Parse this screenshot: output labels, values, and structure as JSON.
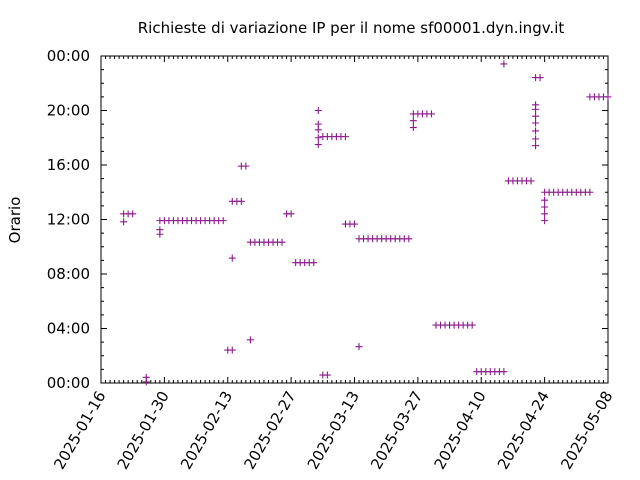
{
  "chart_data": {
    "type": "scatter",
    "title": "Richieste di variazione IP per il nome sf00001.dyn.ingv.it",
    "xlabel": "",
    "ylabel": "Orario",
    "marker": "plus",
    "color": "#8b1a8b",
    "grid": false,
    "x_ticks": [
      "2025-01-16",
      "2025-01-30",
      "2025-02-13",
      "2025-02-27",
      "2025-03-13",
      "2025-03-27",
      "2025-04-10",
      "2025-04-24",
      "2025-05-08"
    ],
    "y_ticks": [
      "00:00",
      "04:00",
      "08:00",
      "12:00",
      "16:00",
      "20:00",
      "00:00"
    ],
    "xlim": [
      "2025-01-16",
      "2025-05-08"
    ],
    "ylim": [
      "00:00",
      "24:00"
    ],
    "points": [
      {
        "x": "2025-01-21",
        "y": "11:50"
      },
      {
        "x": "2025-01-21",
        "y": "12:25"
      },
      {
        "x": "2025-01-22",
        "y": "12:25"
      },
      {
        "x": "2025-01-23",
        "y": "12:25"
      },
      {
        "x": "2025-01-26",
        "y": "00:05"
      },
      {
        "x": "2025-01-26",
        "y": "00:25"
      },
      {
        "x": "2025-01-29",
        "y": "10:55"
      },
      {
        "x": "2025-01-29",
        "y": "11:15"
      },
      {
        "x": "2025-01-29",
        "y": "11:55"
      },
      {
        "x": "2025-01-30",
        "y": "11:55"
      },
      {
        "x": "2025-01-31",
        "y": "11:55"
      },
      {
        "x": "2025-02-01",
        "y": "11:55"
      },
      {
        "x": "2025-02-02",
        "y": "11:55"
      },
      {
        "x": "2025-02-03",
        "y": "11:55"
      },
      {
        "x": "2025-02-04",
        "y": "11:55"
      },
      {
        "x": "2025-02-05",
        "y": "11:55"
      },
      {
        "x": "2025-02-06",
        "y": "11:55"
      },
      {
        "x": "2025-02-07",
        "y": "11:55"
      },
      {
        "x": "2025-02-08",
        "y": "11:55"
      },
      {
        "x": "2025-02-09",
        "y": "11:55"
      },
      {
        "x": "2025-02-10",
        "y": "11:55"
      },
      {
        "x": "2025-02-11",
        "y": "11:55"
      },
      {
        "x": "2025-02-12",
        "y": "11:55"
      },
      {
        "x": "2025-02-13",
        "y": "02:25"
      },
      {
        "x": "2025-02-14",
        "y": "02:25"
      },
      {
        "x": "2025-02-14",
        "y": "09:10"
      },
      {
        "x": "2025-02-14",
        "y": "13:20"
      },
      {
        "x": "2025-02-15",
        "y": "13:20"
      },
      {
        "x": "2025-02-16",
        "y": "13:20"
      },
      {
        "x": "2025-02-16",
        "y": "15:55"
      },
      {
        "x": "2025-02-17",
        "y": "15:55"
      },
      {
        "x": "2025-02-18",
        "y": "03:10"
      },
      {
        "x": "2025-02-18",
        "y": "10:20"
      },
      {
        "x": "2025-02-19",
        "y": "10:20"
      },
      {
        "x": "2025-02-20",
        "y": "10:20"
      },
      {
        "x": "2025-02-21",
        "y": "10:20"
      },
      {
        "x": "2025-02-22",
        "y": "10:20"
      },
      {
        "x": "2025-02-23",
        "y": "10:20"
      },
      {
        "x": "2025-02-24",
        "y": "10:20"
      },
      {
        "x": "2025-02-25",
        "y": "10:20"
      },
      {
        "x": "2025-02-26",
        "y": "12:25"
      },
      {
        "x": "2025-02-27",
        "y": "12:25"
      },
      {
        "x": "2025-02-28",
        "y": "08:50"
      },
      {
        "x": "2025-03-01",
        "y": "08:50"
      },
      {
        "x": "2025-03-02",
        "y": "08:50"
      },
      {
        "x": "2025-03-03",
        "y": "08:50"
      },
      {
        "x": "2025-03-04",
        "y": "08:50"
      },
      {
        "x": "2025-03-05",
        "y": "17:30"
      },
      {
        "x": "2025-03-05",
        "y": "18:00"
      },
      {
        "x": "2025-03-05",
        "y": "18:35"
      },
      {
        "x": "2025-03-05",
        "y": "19:00"
      },
      {
        "x": "2025-03-05",
        "y": "20:00"
      },
      {
        "x": "2025-03-06",
        "y": "00:35"
      },
      {
        "x": "2025-03-07",
        "y": "00:35"
      },
      {
        "x": "2025-03-06",
        "y": "18:05"
      },
      {
        "x": "2025-03-07",
        "y": "18:05"
      },
      {
        "x": "2025-03-08",
        "y": "18:05"
      },
      {
        "x": "2025-03-09",
        "y": "18:05"
      },
      {
        "x": "2025-03-10",
        "y": "18:05"
      },
      {
        "x": "2025-03-11",
        "y": "18:05"
      },
      {
        "x": "2025-03-11",
        "y": "11:40"
      },
      {
        "x": "2025-03-12",
        "y": "11:40"
      },
      {
        "x": "2025-03-13",
        "y": "11:40"
      },
      {
        "x": "2025-03-14",
        "y": "02:40"
      },
      {
        "x": "2025-03-14",
        "y": "10:35"
      },
      {
        "x": "2025-03-15",
        "y": "10:35"
      },
      {
        "x": "2025-03-16",
        "y": "10:35"
      },
      {
        "x": "2025-03-17",
        "y": "10:35"
      },
      {
        "x": "2025-03-18",
        "y": "10:35"
      },
      {
        "x": "2025-03-19",
        "y": "10:35"
      },
      {
        "x": "2025-03-20",
        "y": "10:35"
      },
      {
        "x": "2025-03-21",
        "y": "10:35"
      },
      {
        "x": "2025-03-22",
        "y": "10:35"
      },
      {
        "x": "2025-03-23",
        "y": "10:35"
      },
      {
        "x": "2025-03-24",
        "y": "10:35"
      },
      {
        "x": "2025-03-25",
        "y": "10:35"
      },
      {
        "x": "2025-03-26",
        "y": "18:45"
      },
      {
        "x": "2025-03-26",
        "y": "19:15"
      },
      {
        "x": "2025-03-26",
        "y": "19:45"
      },
      {
        "x": "2025-03-27",
        "y": "19:45"
      },
      {
        "x": "2025-03-28",
        "y": "19:45"
      },
      {
        "x": "2025-03-29",
        "y": "19:45"
      },
      {
        "x": "2025-03-30",
        "y": "19:45"
      },
      {
        "x": "2025-03-31",
        "y": "04:15"
      },
      {
        "x": "2025-04-01",
        "y": "04:15"
      },
      {
        "x": "2025-04-02",
        "y": "04:15"
      },
      {
        "x": "2025-04-03",
        "y": "04:15"
      },
      {
        "x": "2025-04-04",
        "y": "04:15"
      },
      {
        "x": "2025-04-05",
        "y": "04:15"
      },
      {
        "x": "2025-04-06",
        "y": "04:15"
      },
      {
        "x": "2025-04-07",
        "y": "04:15"
      },
      {
        "x": "2025-04-08",
        "y": "04:15"
      },
      {
        "x": "2025-04-09",
        "y": "00:50"
      },
      {
        "x": "2025-04-10",
        "y": "00:50"
      },
      {
        "x": "2025-04-11",
        "y": "00:50"
      },
      {
        "x": "2025-04-12",
        "y": "00:50"
      },
      {
        "x": "2025-04-13",
        "y": "00:50"
      },
      {
        "x": "2025-04-14",
        "y": "00:50"
      },
      {
        "x": "2025-04-15",
        "y": "00:50"
      },
      {
        "x": "2025-04-15",
        "y": "23:25"
      },
      {
        "x": "2025-04-16",
        "y": "14:50"
      },
      {
        "x": "2025-04-17",
        "y": "14:50"
      },
      {
        "x": "2025-04-18",
        "y": "14:50"
      },
      {
        "x": "2025-04-19",
        "y": "14:50"
      },
      {
        "x": "2025-04-20",
        "y": "14:50"
      },
      {
        "x": "2025-04-21",
        "y": "14:50"
      },
      {
        "x": "2025-04-22",
        "y": "22:25"
      },
      {
        "x": "2025-04-23",
        "y": "22:25"
      },
      {
        "x": "2025-04-22",
        "y": "17:25"
      },
      {
        "x": "2025-04-22",
        "y": "17:55"
      },
      {
        "x": "2025-04-22",
        "y": "18:30"
      },
      {
        "x": "2025-04-22",
        "y": "19:05"
      },
      {
        "x": "2025-04-22",
        "y": "19:35"
      },
      {
        "x": "2025-04-22",
        "y": "20:05"
      },
      {
        "x": "2025-04-22",
        "y": "20:25"
      },
      {
        "x": "2025-04-24",
        "y": "11:55"
      },
      {
        "x": "2025-04-24",
        "y": "12:25"
      },
      {
        "x": "2025-04-24",
        "y": "12:55"
      },
      {
        "x": "2025-04-24",
        "y": "13:25"
      },
      {
        "x": "2025-04-24",
        "y": "14:00"
      },
      {
        "x": "2025-04-25",
        "y": "14:00"
      },
      {
        "x": "2025-04-26",
        "y": "14:00"
      },
      {
        "x": "2025-04-27",
        "y": "14:00"
      },
      {
        "x": "2025-04-28",
        "y": "14:00"
      },
      {
        "x": "2025-04-29",
        "y": "14:00"
      },
      {
        "x": "2025-04-30",
        "y": "14:00"
      },
      {
        "x": "2025-05-01",
        "y": "14:00"
      },
      {
        "x": "2025-05-02",
        "y": "14:00"
      },
      {
        "x": "2025-05-03",
        "y": "14:00"
      },
      {
        "x": "2025-05-04",
        "y": "14:00"
      },
      {
        "x": "2025-05-04",
        "y": "21:00"
      },
      {
        "x": "2025-05-05",
        "y": "21:00"
      },
      {
        "x": "2025-05-06",
        "y": "21:00"
      },
      {
        "x": "2025-05-07",
        "y": "21:00"
      },
      {
        "x": "2025-05-08",
        "y": "21:00"
      }
    ]
  }
}
